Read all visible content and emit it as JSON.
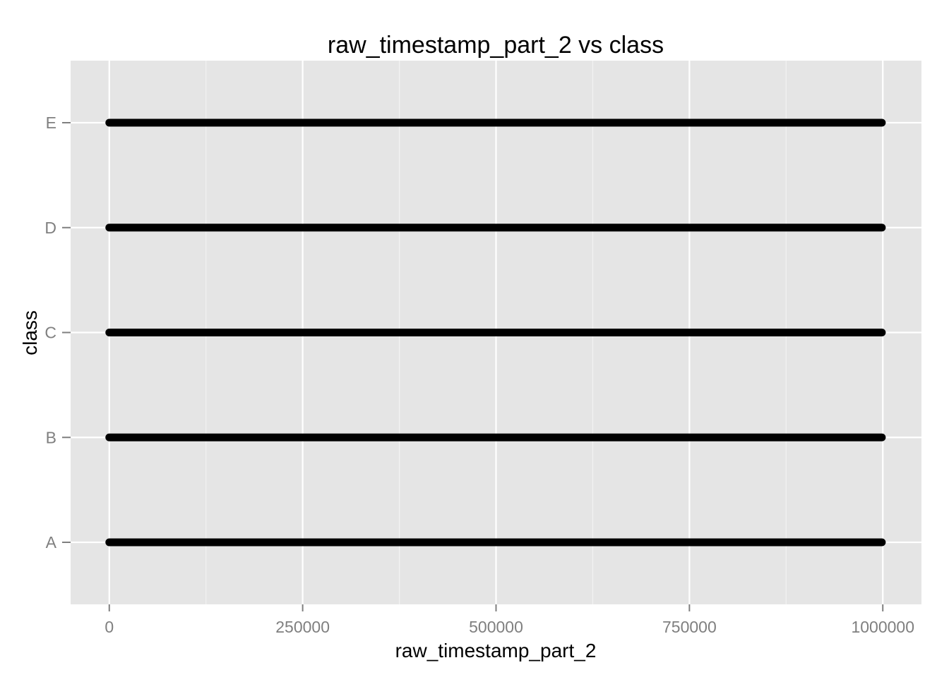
{
  "chart_data": {
    "type": "scatter",
    "title": "raw_timestamp_part_2 vs class",
    "xlabel": "raw_timestamp_part_2",
    "ylabel": "class",
    "x_ticks": [
      0,
      250000,
      500000,
      750000,
      1000000
    ],
    "x_tick_labels": [
      "0",
      "250000",
      "500000",
      "750000",
      "1000000"
    ],
    "xlim": [
      -50000,
      1050000
    ],
    "categories": [
      "A",
      "B",
      "C",
      "D",
      "E"
    ],
    "series": [
      {
        "category": "A",
        "x_range": [
          0,
          998801
        ]
      },
      {
        "category": "B",
        "x_range": [
          0,
          998801
        ]
      },
      {
        "category": "C",
        "x_range": [
          0,
          998801
        ]
      },
      {
        "category": "D",
        "x_range": [
          0,
          998801
        ]
      },
      {
        "category": "E",
        "x_range": [
          0,
          998801
        ]
      }
    ],
    "grid": true,
    "panel_color": "#e5e5e5",
    "grid_color": "#ffffff",
    "point_color": "#000000"
  }
}
